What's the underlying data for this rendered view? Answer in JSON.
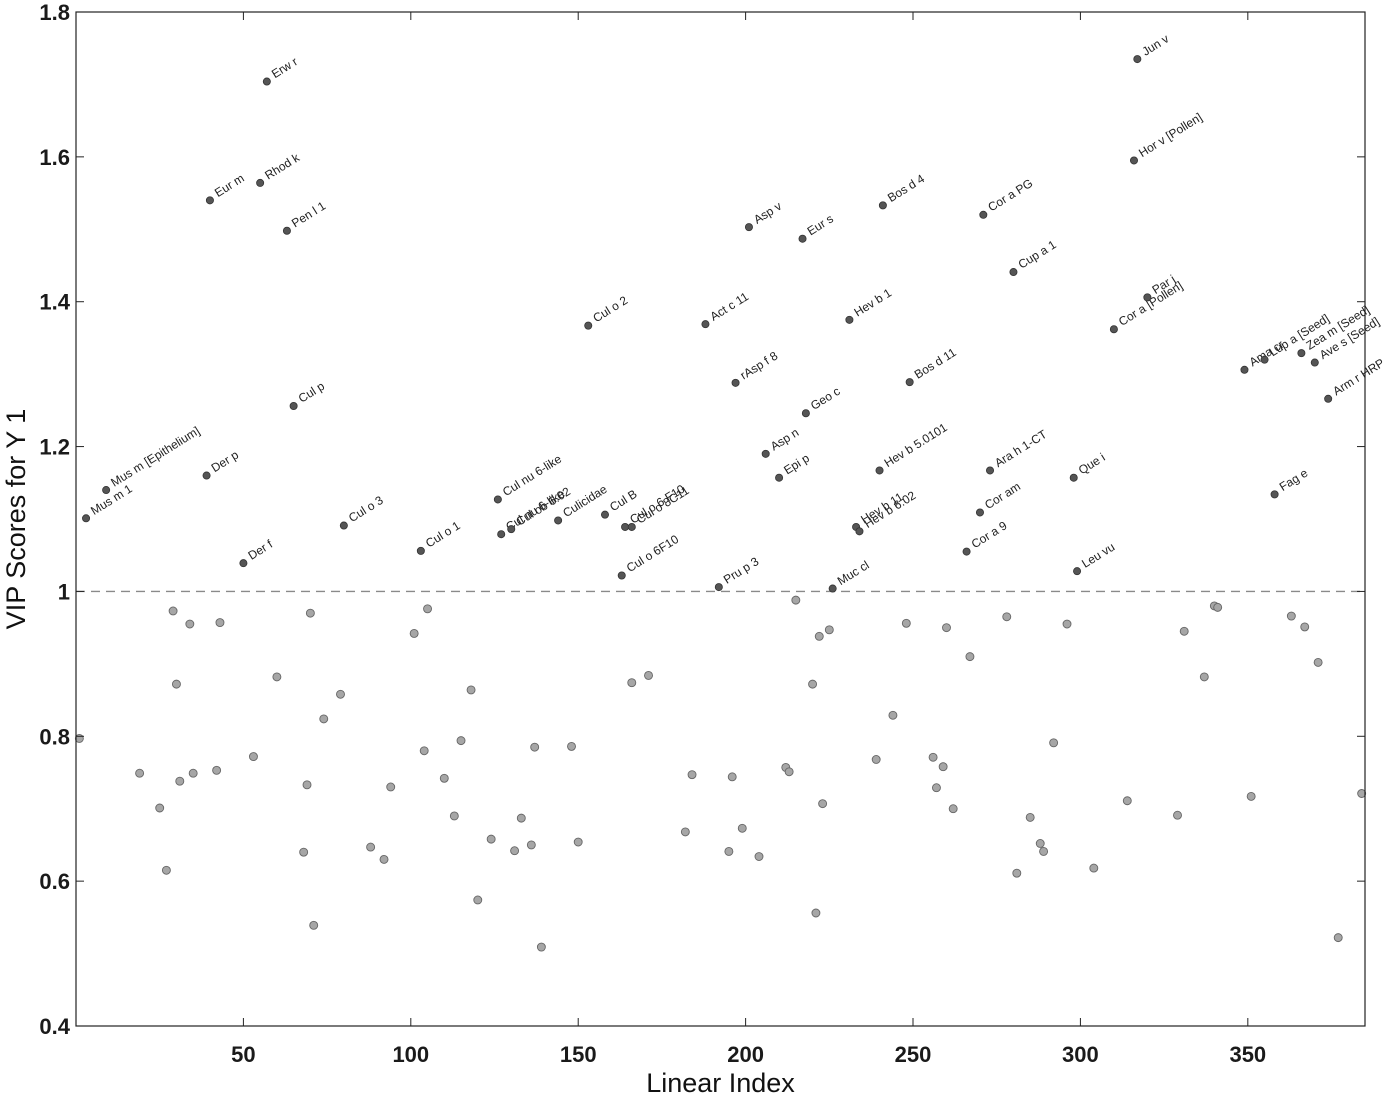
{
  "chart_data": {
    "type": "scatter",
    "xlabel": "Linear Index",
    "ylabel": "VIP Scores for Y 1",
    "xlim": [
      0,
      385
    ],
    "ylim": [
      0.4,
      1.8
    ],
    "xticks": [
      50,
      100,
      150,
      200,
      250,
      300,
      350
    ],
    "yticks": [
      0.4,
      0.6,
      0.8,
      1.0,
      1.2,
      1.4,
      1.6,
      1.8
    ],
    "xtick_labels": [
      "50",
      "100",
      "150",
      "200",
      "250",
      "300",
      "350"
    ],
    "ytick_labels": [
      "0.4",
      "0.6",
      "0.8",
      "1",
      "1.2",
      "1.4",
      "1.6",
      "1.8"
    ],
    "threshold": 1.0,
    "grid": false,
    "colors": {
      "labeled_point": "#555555",
      "unlabeled_point": "#a6a6a6",
      "threshold_line": "#8a8a8a"
    },
    "labeled_points": [
      {
        "x": 3,
        "y": 1.101,
        "label": "Mus m 1"
      },
      {
        "x": 9,
        "y": 1.14,
        "label": "Mus m [Epithelium]"
      },
      {
        "x": 39,
        "y": 1.16,
        "label": "Der p"
      },
      {
        "x": 40,
        "y": 1.54,
        "label": "Eur m"
      },
      {
        "x": 50,
        "y": 1.039,
        "label": "Der f"
      },
      {
        "x": 55,
        "y": 1.564,
        "label": "Rhod k"
      },
      {
        "x": 57,
        "y": 1.704,
        "label": "Erw r"
      },
      {
        "x": 63,
        "y": 1.498,
        "label": "Pen l 1"
      },
      {
        "x": 65,
        "y": 1.256,
        "label": "Cul p"
      },
      {
        "x": 80,
        "y": 1.091,
        "label": "Cul o 3"
      },
      {
        "x": 103,
        "y": 1.056,
        "label": "Cul o 1"
      },
      {
        "x": 126,
        "y": 1.127,
        "label": "Cul nu 6-like"
      },
      {
        "x": 127,
        "y": 1.079,
        "label": "Cul nu 6-like"
      },
      {
        "x": 130,
        "y": 1.086,
        "label": "Cul ob 6.02"
      },
      {
        "x": 144,
        "y": 1.098,
        "label": "Culicidae"
      },
      {
        "x": 153,
        "y": 1.367,
        "label": "Cul o 2"
      },
      {
        "x": 158,
        "y": 1.106,
        "label": "Cul B"
      },
      {
        "x": 163,
        "y": 1.022,
        "label": "Cul o 6F10"
      },
      {
        "x": 164,
        "y": 1.089,
        "label": "Cul o 6 F10"
      },
      {
        "x": 166,
        "y": 1.089,
        "label": "Cul o 8C11"
      },
      {
        "x": 188,
        "y": 1.369,
        "label": "Act c 11"
      },
      {
        "x": 192,
        "y": 1.006,
        "label": "Pru p 3"
      },
      {
        "x": 197,
        "y": 1.288,
        "label": "rAsp f 8"
      },
      {
        "x": 201,
        "y": 1.503,
        "label": "Asp v"
      },
      {
        "x": 206,
        "y": 1.19,
        "label": "Asp n"
      },
      {
        "x": 210,
        "y": 1.157,
        "label": "Epi p"
      },
      {
        "x": 217,
        "y": 1.487,
        "label": "Eur s"
      },
      {
        "x": 218,
        "y": 1.246,
        "label": "Geo c"
      },
      {
        "x": 226,
        "y": 1.004,
        "label": "Muc cl"
      },
      {
        "x": 231,
        "y": 1.375,
        "label": "Hev b 1"
      },
      {
        "x": 233,
        "y": 1.089,
        "label": "Hev b 11"
      },
      {
        "x": 234,
        "y": 1.083,
        "label": "Hev b 6.02"
      },
      {
        "x": 240,
        "y": 1.167,
        "label": "Hev b 5.0101"
      },
      {
        "x": 241,
        "y": 1.533,
        "label": "Bos d 4"
      },
      {
        "x": 249,
        "y": 1.289,
        "label": "Bos d 11"
      },
      {
        "x": 266,
        "y": 1.055,
        "label": "Cor a 9"
      },
      {
        "x": 270,
        "y": 1.109,
        "label": "Cor am"
      },
      {
        "x": 271,
        "y": 1.52,
        "label": "Cor a PG"
      },
      {
        "x": 273,
        "y": 1.167,
        "label": "Ara h 1-CT"
      },
      {
        "x": 280,
        "y": 1.441,
        "label": "Cup a 1"
      },
      {
        "x": 298,
        "y": 1.157,
        "label": "Que i"
      },
      {
        "x": 299,
        "y": 1.028,
        "label": "Leu vu"
      },
      {
        "x": 310,
        "y": 1.362,
        "label": "Cor a [Pollen]"
      },
      {
        "x": 316,
        "y": 1.595,
        "label": "Hor v [Pollen]"
      },
      {
        "x": 317,
        "y": 1.735,
        "label": "Jun v"
      },
      {
        "x": 320,
        "y": 1.406,
        "label": "Par j"
      },
      {
        "x": 349,
        "y": 1.306,
        "label": "Ama cr"
      },
      {
        "x": 355,
        "y": 1.32,
        "label": "Lup a [Seed]"
      },
      {
        "x": 358,
        "y": 1.134,
        "label": "Fag e"
      },
      {
        "x": 366,
        "y": 1.329,
        "label": "Zea m [Seed]"
      },
      {
        "x": 370,
        "y": 1.316,
        "label": "Ave s [Seed]"
      },
      {
        "x": 374,
        "y": 1.266,
        "label": "Arm r HRP"
      }
    ],
    "unlabeled_points": [
      {
        "x": 1,
        "y": 0.797
      },
      {
        "x": 19,
        "y": 0.749
      },
      {
        "x": 25,
        "y": 0.701
      },
      {
        "x": 27,
        "y": 0.615
      },
      {
        "x": 29,
        "y": 0.973
      },
      {
        "x": 30,
        "y": 0.872
      },
      {
        "x": 31,
        "y": 0.738
      },
      {
        "x": 34,
        "y": 0.955
      },
      {
        "x": 35,
        "y": 0.749
      },
      {
        "x": 42,
        "y": 0.753
      },
      {
        "x": 43,
        "y": 0.957
      },
      {
        "x": 53,
        "y": 0.772
      },
      {
        "x": 60,
        "y": 0.882
      },
      {
        "x": 68,
        "y": 0.64
      },
      {
        "x": 69,
        "y": 0.733
      },
      {
        "x": 70,
        "y": 0.97
      },
      {
        "x": 71,
        "y": 0.539
      },
      {
        "x": 74,
        "y": 0.824
      },
      {
        "x": 79,
        "y": 0.858
      },
      {
        "x": 88,
        "y": 0.647
      },
      {
        "x": 92,
        "y": 0.63
      },
      {
        "x": 94,
        "y": 0.73
      },
      {
        "x": 101,
        "y": 0.942
      },
      {
        "x": 104,
        "y": 0.78
      },
      {
        "x": 105,
        "y": 0.976
      },
      {
        "x": 110,
        "y": 0.742
      },
      {
        "x": 113,
        "y": 0.69
      },
      {
        "x": 115,
        "y": 0.794
      },
      {
        "x": 118,
        "y": 0.864
      },
      {
        "x": 120,
        "y": 0.574
      },
      {
        "x": 124,
        "y": 0.658
      },
      {
        "x": 131,
        "y": 0.642
      },
      {
        "x": 133,
        "y": 0.687
      },
      {
        "x": 136,
        "y": 0.65
      },
      {
        "x": 137,
        "y": 0.785
      },
      {
        "x": 139,
        "y": 0.509
      },
      {
        "x": 148,
        "y": 0.786
      },
      {
        "x": 150,
        "y": 0.654
      },
      {
        "x": 166,
        "y": 0.874
      },
      {
        "x": 171,
        "y": 0.884
      },
      {
        "x": 182,
        "y": 0.668
      },
      {
        "x": 184,
        "y": 0.747
      },
      {
        "x": 195,
        "y": 0.641
      },
      {
        "x": 196,
        "y": 0.744
      },
      {
        "x": 199,
        "y": 0.673
      },
      {
        "x": 204,
        "y": 0.634
      },
      {
        "x": 212,
        "y": 0.757
      },
      {
        "x": 213,
        "y": 0.751
      },
      {
        "x": 215,
        "y": 0.988
      },
      {
        "x": 220,
        "y": 0.872
      },
      {
        "x": 221,
        "y": 0.556
      },
      {
        "x": 222,
        "y": 0.938
      },
      {
        "x": 223,
        "y": 0.707
      },
      {
        "x": 225,
        "y": 0.947
      },
      {
        "x": 239,
        "y": 0.768
      },
      {
        "x": 244,
        "y": 0.829
      },
      {
        "x": 248,
        "y": 0.956
      },
      {
        "x": 256,
        "y": 0.771
      },
      {
        "x": 257,
        "y": 0.729
      },
      {
        "x": 259,
        "y": 0.758
      },
      {
        "x": 260,
        "y": 0.95
      },
      {
        "x": 262,
        "y": 0.7
      },
      {
        "x": 267,
        "y": 0.91
      },
      {
        "x": 278,
        "y": 0.965
      },
      {
        "x": 281,
        "y": 0.611
      },
      {
        "x": 285,
        "y": 0.688
      },
      {
        "x": 288,
        "y": 0.652
      },
      {
        "x": 289,
        "y": 0.641
      },
      {
        "x": 292,
        "y": 0.791
      },
      {
        "x": 296,
        "y": 0.955
      },
      {
        "x": 304,
        "y": 0.618
      },
      {
        "x": 314,
        "y": 0.711
      },
      {
        "x": 329,
        "y": 0.691
      },
      {
        "x": 331,
        "y": 0.945
      },
      {
        "x": 337,
        "y": 0.882
      },
      {
        "x": 340,
        "y": 0.98
      },
      {
        "x": 341,
        "y": 0.978
      },
      {
        "x": 351,
        "y": 0.717
      },
      {
        "x": 363,
        "y": 0.966
      },
      {
        "x": 367,
        "y": 0.951
      },
      {
        "x": 371,
        "y": 0.902
      },
      {
        "x": 377,
        "y": 0.522
      },
      {
        "x": 384,
        "y": 0.721
      }
    ]
  }
}
